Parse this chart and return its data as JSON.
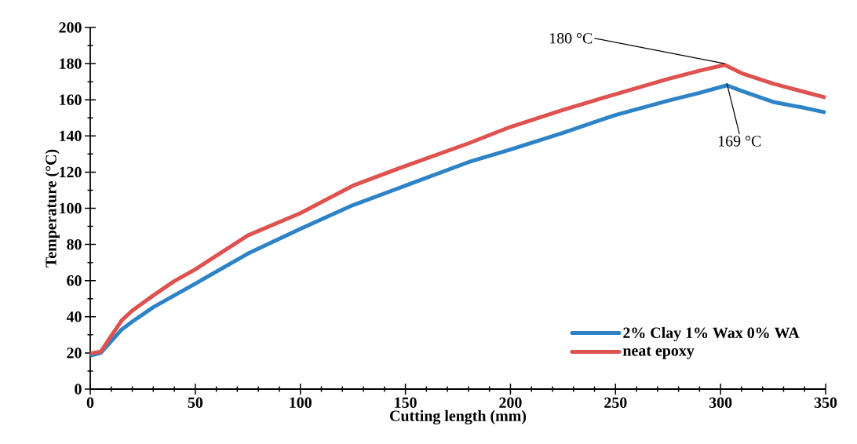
{
  "chart_data": {
    "type": "line",
    "xlabel": "Cutting length (mm)",
    "ylabel": "Temperature (°C)",
    "xlim": [
      0,
      350
    ],
    "ylim": [
      0,
      200
    ],
    "xticks": [
      0,
      50,
      100,
      150,
      200,
      250,
      300,
      350
    ],
    "yticks": [
      0,
      20,
      40,
      60,
      80,
      100,
      120,
      140,
      160,
      180,
      200
    ],
    "legend": "bottom right",
    "marker": "none",
    "series": [
      {
        "name": "2% Clay 1% Wax 0% WA",
        "color": "#2e83c6",
        "x": [
          0,
          5,
          10,
          15,
          20,
          30,
          40,
          50,
          75,
          100,
          125,
          150,
          180,
          200,
          225,
          250,
          275,
          290,
          303,
          310,
          325,
          340,
          350
        ],
        "values": [
          18.5,
          20,
          26.5,
          33,
          37.3,
          45.3,
          51.8,
          58.3,
          74.9,
          88.6,
          101.7,
          112.5,
          125.5,
          132.5,
          141.7,
          151.6,
          159.5,
          163.8,
          168,
          164.9,
          158.8,
          155.5,
          153
        ]
      },
      {
        "name": "neat epoxy",
        "color": "#de5250",
        "x": [
          0,
          5,
          10,
          15,
          20,
          30,
          40,
          50,
          75,
          100,
          125,
          150,
          180,
          200,
          225,
          250,
          275,
          290,
          302,
          310,
          325,
          340,
          350
        ],
        "values": [
          19.7,
          20.7,
          29.4,
          38,
          43.4,
          51.8,
          59.7,
          66.2,
          85,
          97.3,
          112.5,
          123.4,
          135.9,
          145,
          154.4,
          163.1,
          171.5,
          176.1,
          179.3,
          174.7,
          168.9,
          164.3,
          161.2
        ]
      }
    ],
    "annotations": [
      {
        "text": "180 °C",
        "x": 302,
        "y": 180
      },
      {
        "text": "169 °C",
        "x": 303,
        "y": 169
      }
    ]
  }
}
